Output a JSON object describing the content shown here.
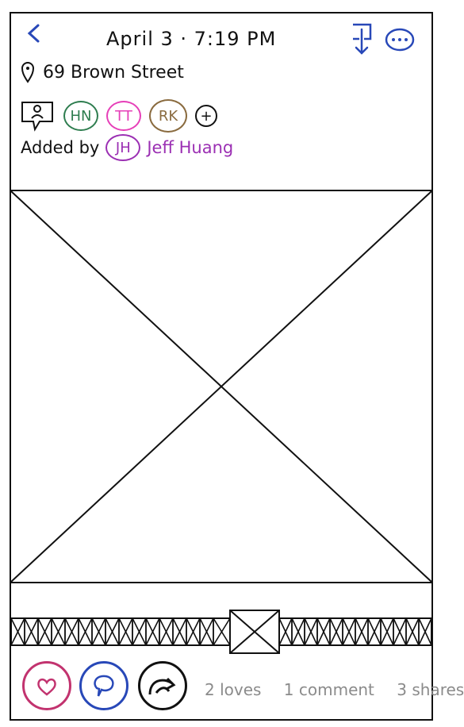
{
  "header": {
    "back_icon": "chevron-left-icon",
    "datetime": "April 3 · 7:19 PM",
    "download_icon": "download-icon",
    "more_icon": "more-icon"
  },
  "location": {
    "icon": "pin-icon",
    "text": "69 Brown Street"
  },
  "people": {
    "tag_icon": "person-tag-icon",
    "avatars": [
      {
        "initials": "HN",
        "color": "#2e7d4f"
      },
      {
        "initials": "TT",
        "color": "#e63fb8"
      },
      {
        "initials": "RK",
        "color": "#8a6b3f"
      }
    ],
    "add_icon": "plus-icon"
  },
  "added_by": {
    "label": "Added by",
    "initials": "JH",
    "name": "Jeff Huang",
    "color": "#9b2fb3"
  },
  "actions": {
    "love_color": "#c2336f",
    "comment_color": "#2848b8",
    "share_color": "#111111",
    "loves": "2 loves",
    "comments": "1 comment",
    "shares": "3 shares"
  }
}
